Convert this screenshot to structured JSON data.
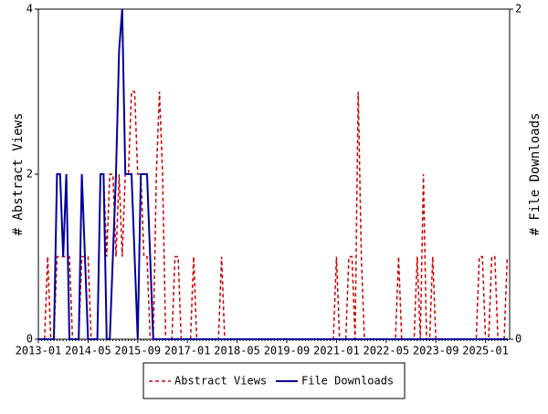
{
  "chart_data": {
    "type": "line",
    "y_label": "# Abstract Views",
    "y2_label": "# File Downloads",
    "categories": [
      "2013-01",
      null,
      null,
      null,
      null,
      null,
      null,
      null,
      null,
      null,
      null,
      null,
      null,
      null,
      null,
      null,
      "2014-05",
      null,
      null,
      null,
      null,
      null,
      null,
      null,
      null,
      null,
      null,
      null,
      null,
      null,
      null,
      null,
      "2015-09",
      null,
      null,
      null,
      null,
      null,
      null,
      null,
      null,
      null,
      null,
      null,
      null,
      null,
      null,
      null,
      "2017-01",
      null,
      null,
      null,
      null,
      null,
      null,
      null,
      null,
      null,
      null,
      null,
      null,
      null,
      null,
      null,
      "2018-05",
      null,
      null,
      null,
      null,
      null,
      null,
      null,
      null,
      null,
      null,
      null,
      null,
      null,
      null,
      null,
      "2019-09",
      null,
      null,
      null,
      null,
      null,
      null,
      null,
      null,
      null,
      null,
      null,
      null,
      null,
      null,
      null,
      "2021-01",
      null,
      null,
      null,
      null,
      null,
      null,
      null,
      null,
      null,
      null,
      null,
      null,
      null,
      null,
      null,
      "2022-05",
      null,
      null,
      null,
      null,
      null,
      null,
      null,
      null,
      null,
      null,
      null,
      null,
      null,
      null,
      null,
      "2023-09",
      null,
      null,
      null,
      null,
      null,
      null,
      null,
      null,
      null,
      null,
      null,
      null,
      null,
      null,
      null,
      "2025-01",
      null,
      null,
      null,
      null,
      null,
      null,
      null
    ],
    "ylim": [
      0,
      4
    ],
    "yticks": [
      0,
      2,
      4
    ],
    "y2lim": [
      0,
      2
    ],
    "y2ticks": [
      0,
      2
    ],
    "series": [
      {
        "name": "Abstract Views",
        "color": "#cc0000",
        "dashed": true,
        "values": [
          0,
          0,
          0,
          1,
          0,
          0,
          1,
          1,
          1,
          1,
          1,
          0,
          0,
          0,
          1,
          1,
          1,
          0,
          0,
          0,
          2,
          2,
          1,
          2,
          2,
          1,
          2,
          1,
          2,
          2,
          3,
          3,
          2,
          2,
          1,
          1,
          0,
          0,
          2,
          3,
          2,
          0,
          0,
          0,
          1,
          1,
          0,
          0,
          0,
          0,
          1,
          0,
          0,
          0,
          0,
          0,
          0,
          0,
          0,
          1,
          0,
          0,
          0,
          0,
          0,
          0,
          0,
          0,
          0,
          0,
          0,
          0,
          0,
          0,
          0,
          0,
          0,
          0,
          0,
          0,
          0,
          0,
          0,
          0,
          0,
          0,
          0,
          0,
          0,
          0,
          0,
          0,
          0,
          0,
          0,
          0,
          1,
          0,
          0,
          0,
          1,
          1,
          0,
          3,
          1,
          0,
          0,
          0,
          0,
          0,
          0,
          0,
          0,
          0,
          0,
          0,
          1,
          0,
          0,
          0,
          0,
          0,
          1,
          0,
          2,
          0,
          0,
          1,
          0,
          0,
          0,
          0,
          0,
          0,
          0,
          0,
          0,
          0,
          0,
          0,
          0,
          0,
          1,
          1,
          0,
          0,
          1,
          1,
          0,
          0,
          0,
          1
        ]
      },
      {
        "name": "File Downloads",
        "color": "#000099",
        "dashed": false,
        "axis": "y2",
        "values": [
          0,
          0,
          0,
          0,
          0,
          0,
          1,
          1,
          0.5,
          1,
          0,
          0,
          0,
          0,
          1,
          0.5,
          0,
          0,
          0,
          0,
          1,
          1,
          0,
          0,
          0.5,
          1,
          1.75,
          2,
          1,
          1,
          1,
          0.5,
          0,
          1,
          1,
          1,
          0.5,
          0,
          0,
          0,
          0,
          0,
          0,
          0,
          0,
          0,
          0,
          0,
          0,
          0,
          0,
          0,
          0,
          0,
          0,
          0,
          0,
          0,
          0,
          0,
          0,
          0,
          0,
          0,
          0,
          0,
          0,
          0,
          0,
          0,
          0,
          0,
          0,
          0,
          0,
          0,
          0,
          0,
          0,
          0,
          0,
          0,
          0,
          0,
          0,
          0,
          0,
          0,
          0,
          0,
          0,
          0,
          0,
          0,
          0,
          0,
          0,
          0,
          0,
          0,
          0,
          0,
          0,
          0,
          0,
          0,
          0,
          0,
          0,
          0,
          0,
          0,
          0,
          0,
          0,
          0,
          0,
          0,
          0,
          0,
          0,
          0,
          0,
          0,
          0,
          0,
          0,
          0,
          0,
          0,
          0,
          0,
          0,
          0,
          0,
          0,
          0,
          0,
          0,
          0,
          0,
          0,
          0,
          0,
          0,
          0,
          0,
          0,
          0,
          0,
          0,
          0
        ]
      }
    ]
  }
}
